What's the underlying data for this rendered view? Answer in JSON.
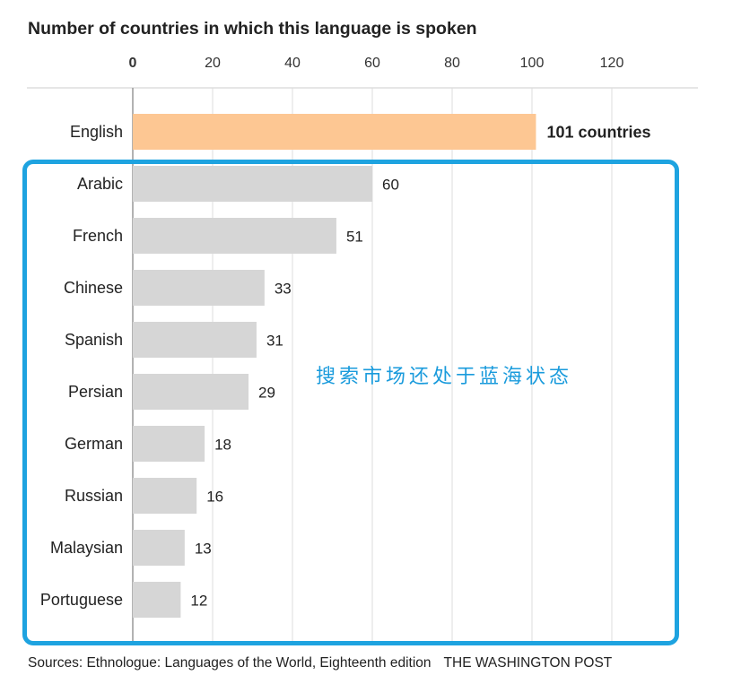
{
  "annotation": "搜索市场还处于蓝海状态",
  "footer": {
    "source": "Sources: Ethnologue: Languages of the World, Eighteenth edition",
    "credit": "THE WASHINGTON POST"
  },
  "chart_data": {
    "type": "bar",
    "orientation": "horizontal",
    "title": "Number of countries in which this language is spoken",
    "xlabel": "",
    "ylabel": "",
    "xlim": [
      0,
      140
    ],
    "ticks": [
      0,
      20,
      40,
      60,
      80,
      100,
      120
    ],
    "tick_labels": [
      "0",
      "20",
      "40",
      "60",
      "80",
      "100",
      "120"
    ],
    "grid": true,
    "categories": [
      "English",
      "Arabic",
      "French",
      "Chinese",
      "Spanish",
      "Persian",
      "German",
      "Russian",
      "Malaysian",
      "Portuguese"
    ],
    "values": [
      101,
      60,
      51,
      33,
      31,
      29,
      18,
      16,
      13,
      12
    ],
    "value_labels": [
      "101 countries",
      "60",
      "51",
      "33",
      "31",
      "29",
      "18",
      "16",
      "13",
      "12"
    ],
    "highlight_category": "English",
    "colors": {
      "highlight": "#fdc793",
      "bar": "#d6d6d6",
      "grid": "#dddddd",
      "axis": "#999999",
      "box": "#1ea3e0",
      "annotation": "#1a9bdc"
    }
  }
}
